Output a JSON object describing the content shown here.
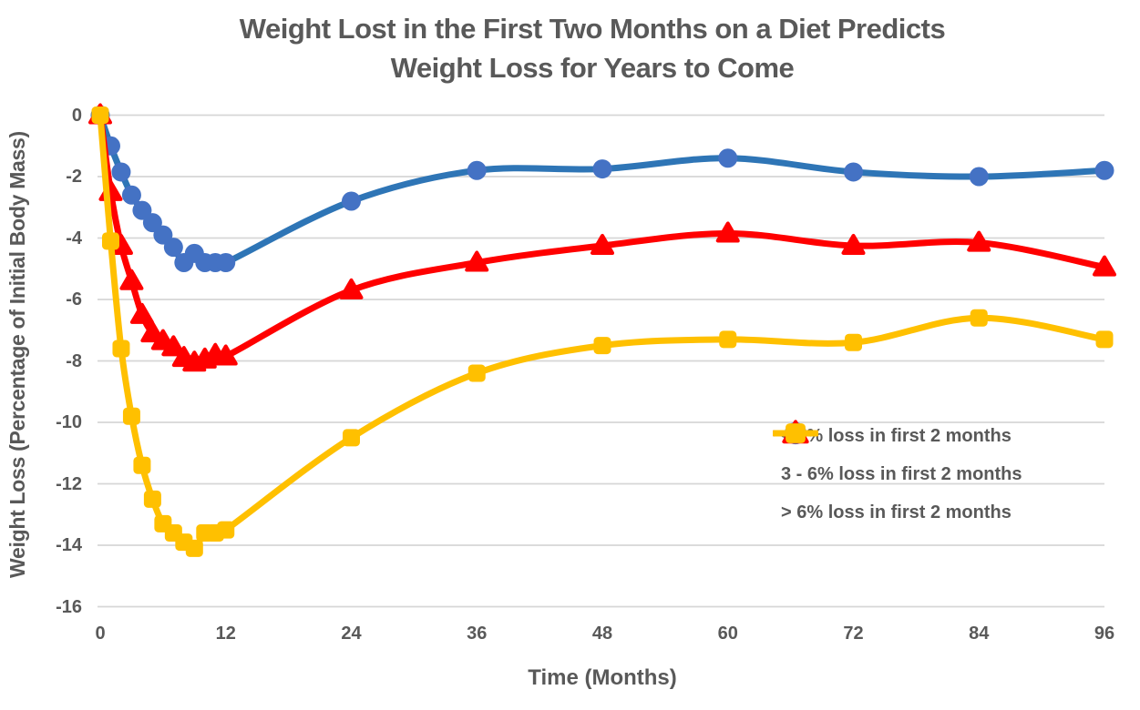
{
  "chart_data": {
    "type": "line",
    "title_line1": "Weight Lost in the First Two Months on a Diet Predicts",
    "title_line2": "Weight Loss for Years to Come",
    "xlabel": "Time (Months)",
    "ylabel": "Weight Loss (Percentage of Initial Body Mass)",
    "xlim": [
      0,
      96
    ],
    "ylim": [
      -16,
      0
    ],
    "x_ticks": [
      0,
      12,
      24,
      36,
      48,
      60,
      72,
      84,
      96
    ],
    "y_ticks": [
      0,
      -2,
      -4,
      -6,
      -8,
      -10,
      -12,
      -14,
      -16
    ],
    "grid": "horizontal-only",
    "legend_position": "inside-right",
    "x": [
      0,
      1,
      2,
      3,
      4,
      5,
      6,
      7,
      8,
      9,
      10,
      11,
      12,
      24,
      36,
      48,
      60,
      72,
      84,
      96
    ],
    "series": [
      {
        "name": "< 3% loss in first 2 months",
        "marker": "circle",
        "line_color": "#2E75B6",
        "marker_color": "#4472C4",
        "values": [
          0,
          -1.0,
          -1.85,
          -2.6,
          -3.1,
          -3.5,
          -3.9,
          -4.3,
          -4.8,
          -4.5,
          -4.8,
          -4.8,
          -4.8,
          -2.8,
          -1.8,
          -1.75,
          -1.4,
          -1.85,
          -2.0,
          -1.8
        ]
      },
      {
        "name": "3 - 6% loss in first 2 months",
        "marker": "triangle",
        "line_color": "#FF0000",
        "marker_color": "#FF0000",
        "values": [
          0,
          -2.5,
          -4.25,
          -5.4,
          -6.5,
          -7.1,
          -7.35,
          -7.55,
          -7.9,
          -8.05,
          -7.95,
          -7.8,
          -7.85,
          -5.7,
          -4.8,
          -4.25,
          -3.85,
          -4.25,
          -4.15,
          -4.95
        ]
      },
      {
        "name": "> 6% loss in first 2 months",
        "marker": "square",
        "line_color": "#FFC000",
        "marker_color": "#FFC000",
        "values": [
          0,
          -4.1,
          -7.6,
          -9.8,
          -11.4,
          -12.5,
          -13.3,
          -13.6,
          -13.9,
          -14.1,
          -13.6,
          -13.6,
          -13.5,
          -10.5,
          -8.4,
          -7.5,
          -7.3,
          -7.4,
          -6.6,
          -7.3
        ]
      }
    ],
    "colors": {
      "text": "#595959",
      "gridline": "#D6D6D6",
      "background": "#FFFFFF"
    }
  }
}
